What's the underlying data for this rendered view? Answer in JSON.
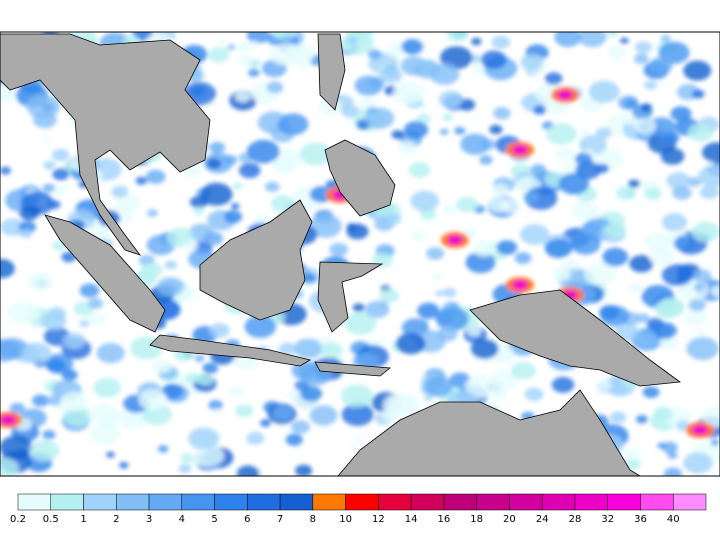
{
  "colorbar": {
    "levels": [
      "0.2",
      "0.5",
      "1",
      "2",
      "3",
      "4",
      "5",
      "6",
      "7",
      "8",
      "10",
      "12",
      "14",
      "16",
      "18",
      "20",
      "24",
      "28",
      "32",
      "36",
      "40"
    ],
    "colors": [
      "#e6fcfc",
      "#b4f0f0",
      "#a0d2fa",
      "#82bef8",
      "#64aaf5",
      "#4696f0",
      "#2d82eb",
      "#1e6ee0",
      "#1460d0",
      "#ff7800",
      "#ff0000",
      "#e6003c",
      "#d2005a",
      "#be0078",
      "#c8008c",
      "#d200a0",
      "#e000b4",
      "#ee00c8",
      "#fa00dc",
      "#ff4cf0",
      "#ff8cff"
    ]
  }
}
